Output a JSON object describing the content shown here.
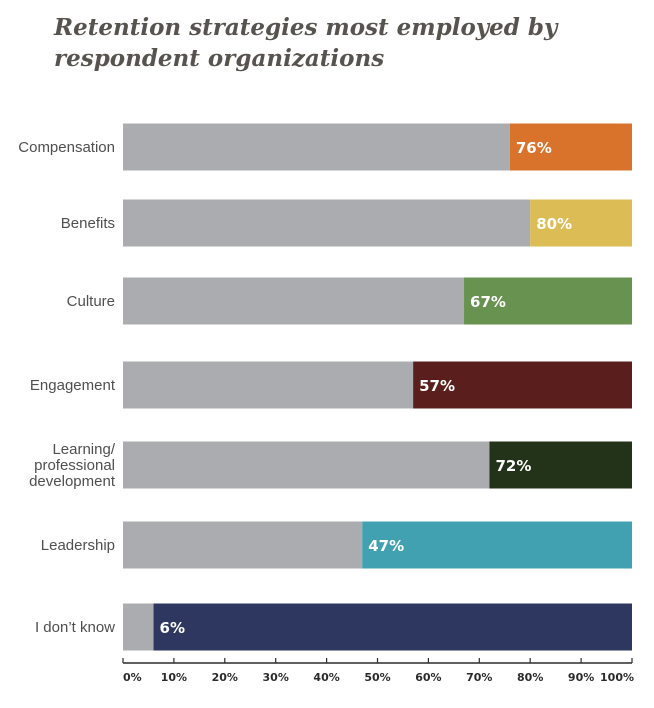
{
  "chart_data": {
    "type": "bar",
    "orientation": "horizontal",
    "stacked_remainder": true,
    "title": "Retention strategies most employed by respondent organizations",
    "categories": [
      "Compensation",
      "Benefits",
      "Culture",
      "Engagement",
      "Learning/ professional development",
      "Leadership",
      "I don’t know"
    ],
    "category_lines": [
      [
        "Compensation"
      ],
      [
        "Benefits"
      ],
      [
        "Culture"
      ],
      [
        "Engagement"
      ],
      [
        "Learning/",
        "professional",
        "development"
      ],
      [
        "Leadership"
      ],
      [
        "I don’t know"
      ]
    ],
    "values": [
      76,
      80,
      67,
      57,
      72,
      47,
      6
    ],
    "value_labels": [
      "76%",
      "80%",
      "67%",
      "57%",
      "72%",
      "47%",
      "6%"
    ],
    "colors": [
      "#d9722b",
      "#dcbc55",
      "#68924f",
      "#5a1f1c",
      "#22331a",
      "#42a1b0",
      "#2e3760"
    ],
    "remainder_color": "#abacaf",
    "xlim": [
      0,
      100
    ],
    "ticks": [
      "0%",
      "10%",
      "20%",
      "30%",
      "40%",
      "50%",
      "60%",
      "70%",
      "80%",
      "90%",
      "100%"
    ],
    "xlabel": "",
    "ylabel": "",
    "grid": false,
    "legend": "none"
  }
}
